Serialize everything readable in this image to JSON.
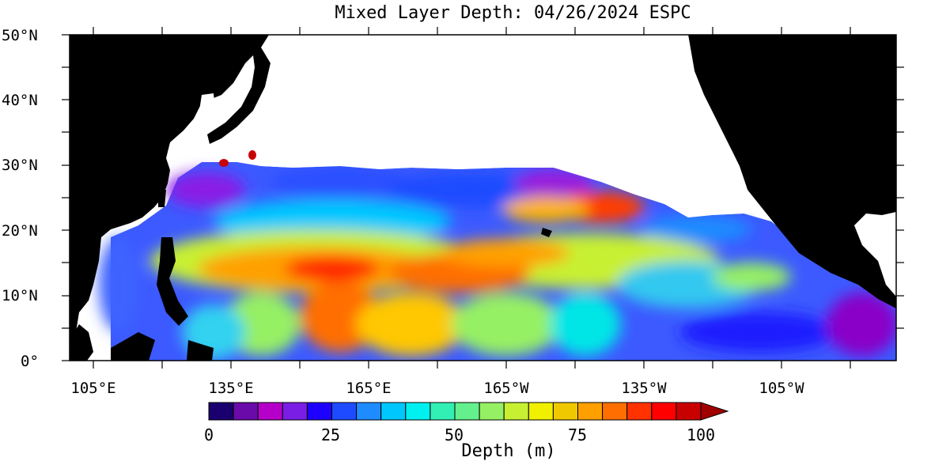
{
  "figure": {
    "title": "Mixed Layer Depth: 04/26/2024 ESPC",
    "lat_labels": [
      "50°N",
      "40°N",
      "30°N",
      "20°N",
      "10°N",
      "0°"
    ],
    "lon_labels": [
      "105°E",
      "135°E",
      "165°E",
      "165°W",
      "135°W",
      "105°W"
    ],
    "colorbar": {
      "ticks": [
        "0",
        "25",
        "50",
        "75",
        "100"
      ],
      "title": "Depth (m)",
      "range": [
        0,
        100
      ],
      "extend": "max",
      "colors": [
        "#1a006e",
        "#6a0aa8",
        "#b400c8",
        "#7a1ee6",
        "#1e00ff",
        "#1e4bff",
        "#1e8cff",
        "#00c8ff",
        "#00f0f0",
        "#32f0b4",
        "#64f08c",
        "#96f064",
        "#c8f032",
        "#f0f000",
        "#f0c800",
        "#ffa000",
        "#ff6e00",
        "#ff3200",
        "#ff0000",
        "#c80000"
      ],
      "over_color": "#a00000"
    },
    "map_colors": {
      "land": "#000000",
      "no_data": "#ffffff"
    }
  }
}
